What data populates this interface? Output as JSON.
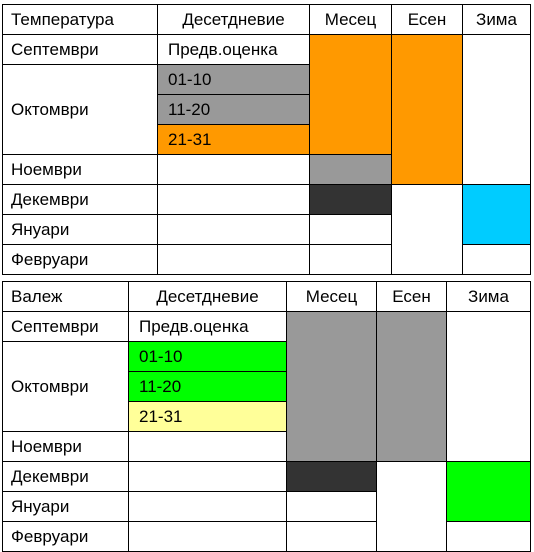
{
  "colors": {
    "orange": "#ff9900",
    "gray": "#999999",
    "dark": "#333333",
    "cyan": "#00ccff",
    "green": "#00ff00",
    "lightyellow": "#ffff99",
    "white": "#ffffff"
  },
  "temperature_table": {
    "headers": {
      "param": "Температура",
      "decades": "Десетдневие",
      "month": "Месец",
      "autumn": "Есен",
      "winter": "Зима"
    },
    "months": {
      "sep": "Септември",
      "oct": "Октомври",
      "nov": "Ноември",
      "dec": "Декември",
      "jan": "Януари",
      "feb": "Февруари"
    },
    "sep_decade": "Предв.оценка",
    "oct_decades": [
      "01-10",
      "11-20",
      "21-31"
    ]
  },
  "precipitation_table": {
    "headers": {
      "param": "Валеж",
      "decades": "Десетдневие",
      "month": "Месец",
      "autumn": "Есен",
      "winter": "Зима"
    },
    "months": {
      "sep": "Септември",
      "oct": "Октомври",
      "nov": "Ноември",
      "dec": "Декември",
      "jan": "Януари",
      "feb": "Февруари"
    },
    "sep_decade": "Предв.оценка",
    "oct_decades": [
      "01-10",
      "11-20",
      "21-31"
    ]
  }
}
